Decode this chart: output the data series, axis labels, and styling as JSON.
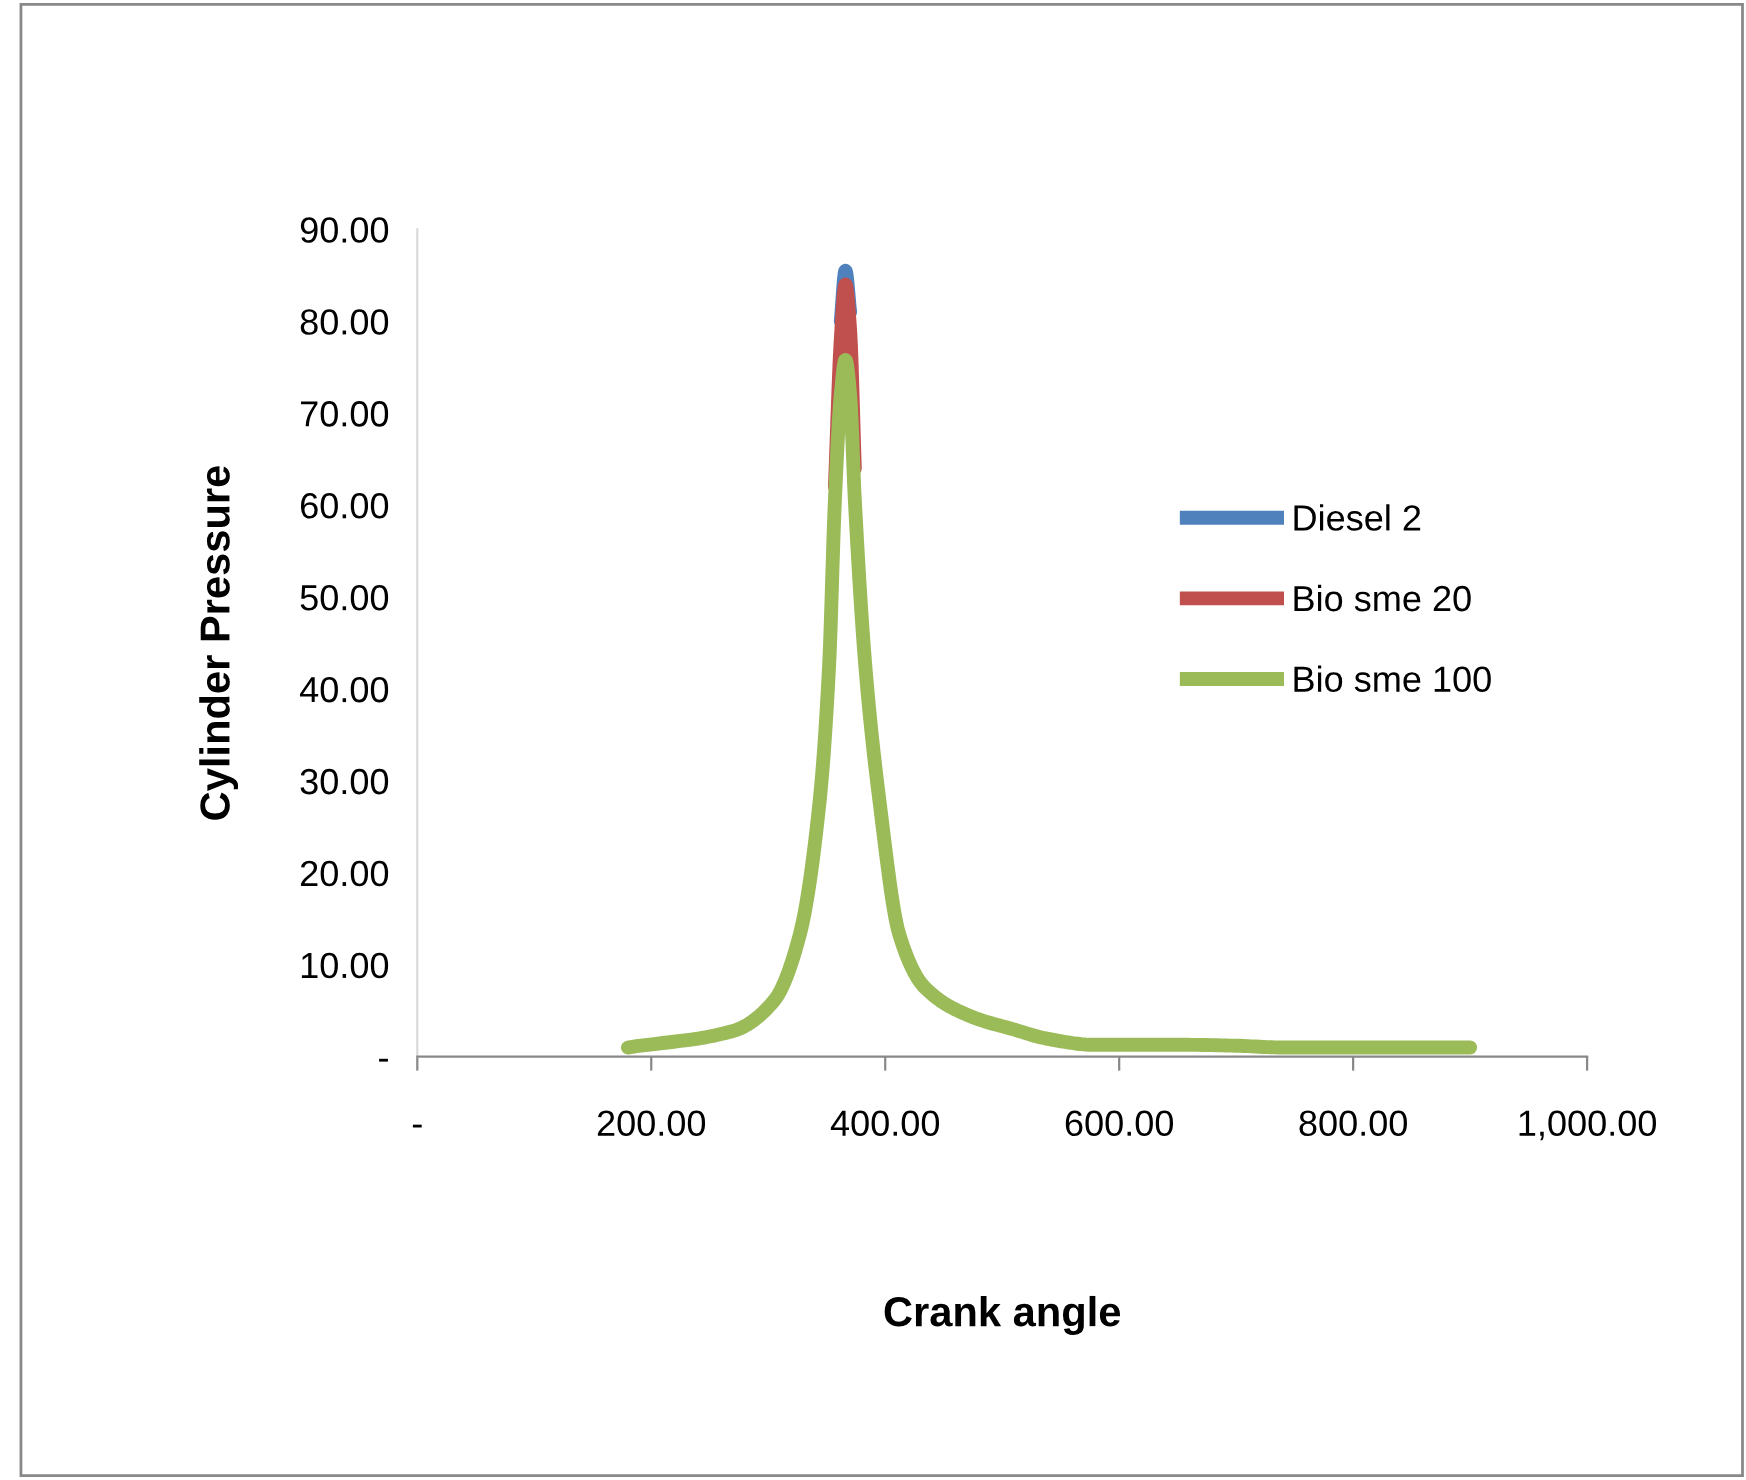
{
  "chart_data": {
    "type": "line",
    "xlabel": "Crank angle",
    "ylabel": "Cylinder Pressure",
    "x": [
      180,
      270,
      305,
      327,
      344,
      352,
      357,
      362,
      366,
      370,
      374,
      383,
      395,
      412,
      434,
      475,
      509,
      537,
      578,
      650,
      700,
      740,
      800,
      900
    ],
    "series": [
      {
        "name": "Diesel 2",
        "color": "#4f81bd",
        "values": [
          null,
          null,
          null,
          null,
          null,
          null,
          null,
          80,
          85.5,
          81,
          null,
          null,
          null,
          null,
          null,
          null,
          null,
          null,
          null,
          null,
          null,
          null,
          null,
          null
        ]
      },
      {
        "name": "Bio sme 20",
        "color": "#c0504d",
        "values": [
          null,
          null,
          null,
          null,
          null,
          null,
          62,
          78,
          84,
          79,
          64,
          null,
          null,
          null,
          null,
          null,
          null,
          null,
          null,
          null,
          null,
          null,
          null,
          null
        ]
      },
      {
        "name": "Bio sme 100",
        "color": "#9bbb59",
        "values": [
          1.0,
          2.8,
          6.1,
          13.3,
          27.9,
          42.5,
          60.6,
          72,
          75.8,
          72,
          60.6,
          42.5,
          27.9,
          13.3,
          7.5,
          4.3,
          3.0,
          2.0,
          1.3,
          1.3,
          1.2,
          1.0,
          1.0,
          1.0
        ]
      }
    ],
    "xlim": [
      0,
      1000
    ],
    "xticks": [
      {
        "value": 0,
        "label": "-"
      },
      {
        "value": 200,
        "label": "200.00"
      },
      {
        "value": 400,
        "label": "400.00"
      },
      {
        "value": 600,
        "label": "600.00"
      },
      {
        "value": 800,
        "label": "800.00"
      },
      {
        "value": 1000,
        "label": "1,000.00"
      }
    ],
    "ylim": [
      0,
      90
    ],
    "yticks": [
      {
        "value": 0,
        "label": "-"
      },
      {
        "value": 10,
        "label": "10.00"
      },
      {
        "value": 20,
        "label": "20.00"
      },
      {
        "value": 30,
        "label": "30.00"
      },
      {
        "value": 40,
        "label": "40.00"
      },
      {
        "value": 50,
        "label": "50.00"
      },
      {
        "value": 60,
        "label": "60.00"
      },
      {
        "value": 70,
        "label": "70.00"
      },
      {
        "value": 80,
        "label": "80.00"
      },
      {
        "value": 90,
        "label": "90.00"
      }
    ],
    "legend": "right",
    "grid": false,
    "marker": "none",
    "line_style": "solid"
  }
}
